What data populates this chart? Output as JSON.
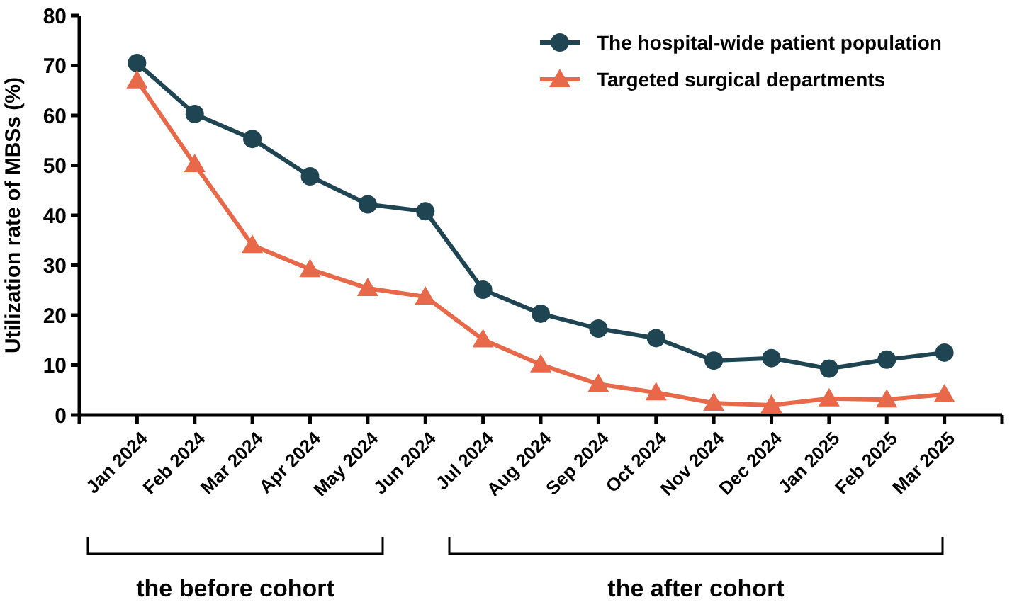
{
  "chart_data": {
    "type": "line",
    "ylabel": "Utilization rate of MBSs (%)",
    "categories": [
      "Jan 2024",
      "Feb 2024",
      "Mar 2024",
      "Apr 2024",
      "May 2024",
      "Jun 2024",
      "Jul 2024",
      "Aug 2024",
      "Sep 2024",
      "Oct 2024",
      "Nov 2024",
      "Dec 2024",
      "Jan 2025",
      "Feb 2025",
      "Mar 2025"
    ],
    "series": [
      {
        "name": "The hospital-wide patient population",
        "color": "#1f4452",
        "marker": "circle",
        "values": [
          70.5,
          60.3,
          55.3,
          47.8,
          42.2,
          40.8,
          25.1,
          20.3,
          17.3,
          15.4,
          10.9,
          11.4,
          9.3,
          11.1,
          12.5
        ]
      },
      {
        "name": "Targeted surgical departments",
        "color": "#e8694a",
        "marker": "triangle",
        "values": [
          67,
          50.2,
          34,
          29.2,
          25.4,
          23.7,
          15.1,
          10.1,
          6.2,
          4.5,
          2.4,
          2.0,
          3.3,
          3.1,
          4.1
        ]
      }
    ],
    "ylim": [
      0,
      80
    ],
    "yticks": [
      0,
      10,
      20,
      30,
      40,
      50,
      60,
      70,
      80
    ],
    "grid": false,
    "legend": "top right",
    "annotations": [
      "the before cohort",
      "the after cohort"
    ]
  }
}
